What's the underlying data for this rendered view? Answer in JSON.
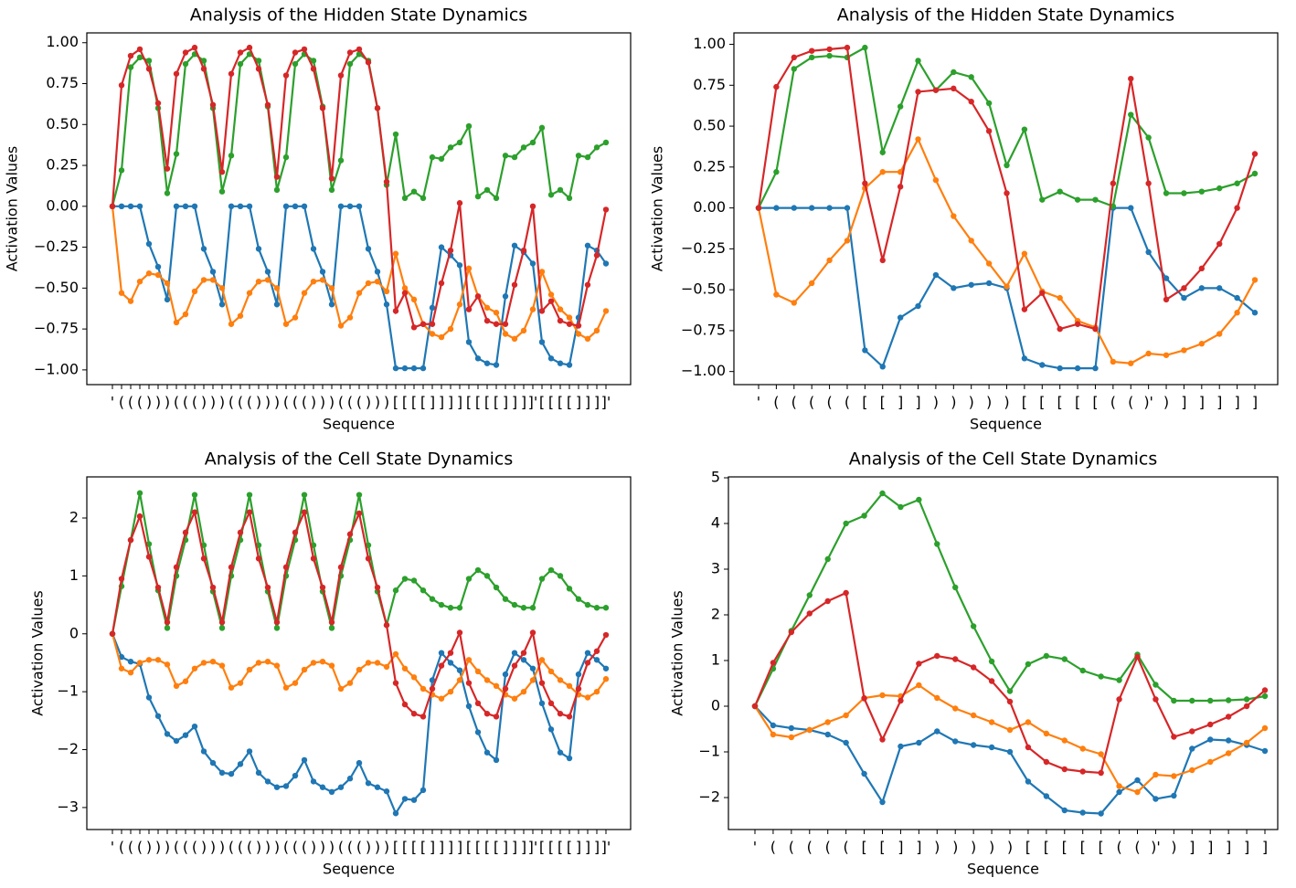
{
  "chart_data": [
    {
      "type": "line",
      "title": "Analysis of the Hidden State Dynamics",
      "x_label": "Sequence",
      "y_label": "Activation Values",
      "categories": [
        "'",
        "(",
        "(",
        "(",
        ")",
        ")",
        ")",
        "(",
        "(",
        "(",
        ")",
        ")",
        ")",
        "(",
        "(",
        "(",
        ")",
        ")",
        ")",
        "(",
        "(",
        "(",
        ")",
        ")",
        ")",
        "(",
        "(",
        "(",
        ")",
        ")",
        ")",
        "[",
        "[",
        "[",
        "[",
        "]",
        "]",
        "]",
        "]",
        "[",
        "[",
        "[",
        "[",
        "]",
        "]",
        "]",
        "]'",
        "[",
        "[",
        "[",
        "[",
        "]",
        "]",
        "]",
        "]'"
      ],
      "ylim": [
        -1.09,
        1.06
      ],
      "yticks": [
        {
          "value": 1,
          "label": "1.00"
        },
        {
          "value": 0.75,
          "label": "0.75"
        },
        {
          "value": 0.5,
          "label": "0.50"
        },
        {
          "value": 0.25,
          "label": "0.25"
        },
        {
          "value": 0,
          "label": "0.00"
        },
        {
          "value": -0.25,
          "label": "−0.25"
        },
        {
          "value": -0.5,
          "label": "−0.50"
        },
        {
          "value": -0.75,
          "label": "−0.75"
        },
        {
          "value": -1,
          "label": "−1.00"
        }
      ],
      "series": [
        {
          "color": "#1f77b4",
          "values": [
            0,
            0,
            0,
            0,
            -0.23,
            -0.37,
            -0.57,
            0,
            0,
            0,
            -0.26,
            -0.4,
            -0.6,
            0,
            0,
            0,
            -0.26,
            -0.4,
            -0.6,
            0,
            0,
            0,
            -0.26,
            -0.4,
            -0.6,
            0,
            0,
            0,
            -0.26,
            -0.4,
            -0.6,
            -0.99,
            -0.99,
            -0.99,
            -0.99,
            -0.62,
            -0.25,
            -0.3,
            -0.36,
            -0.83,
            -0.93,
            -0.96,
            -0.97,
            -0.55,
            -0.24,
            -0.28,
            -0.35,
            -0.83,
            -0.93,
            -0.96,
            -0.97,
            -0.68,
            -0.24,
            -0.27,
            -0.35
          ]
        },
        {
          "color": "#ff7f0e",
          "values": [
            0,
            -0.53,
            -0.58,
            -0.46,
            -0.41,
            -0.42,
            -0.47,
            -0.71,
            -0.66,
            -0.52,
            -0.45,
            -0.45,
            -0.5,
            -0.72,
            -0.67,
            -0.53,
            -0.46,
            -0.45,
            -0.5,
            -0.72,
            -0.68,
            -0.53,
            -0.46,
            -0.45,
            -0.5,
            -0.73,
            -0.68,
            -0.53,
            -0.47,
            -0.46,
            -0.52,
            -0.29,
            -0.5,
            -0.57,
            -0.72,
            -0.78,
            -0.8,
            -0.75,
            -0.6,
            -0.38,
            -0.55,
            -0.62,
            -0.65,
            -0.78,
            -0.81,
            -0.76,
            -0.63,
            -0.4,
            -0.54,
            -0.63,
            -0.68,
            -0.78,
            -0.81,
            -0.76,
            -0.64
          ]
        },
        {
          "color": "#2ca02c",
          "values": [
            0,
            0.22,
            0.85,
            0.91,
            0.89,
            0.6,
            0.08,
            0.32,
            0.87,
            0.93,
            0.89,
            0.6,
            0.09,
            0.31,
            0.87,
            0.93,
            0.89,
            0.61,
            0.1,
            0.3,
            0.87,
            0.93,
            0.89,
            0.61,
            0.1,
            0.28,
            0.87,
            0.93,
            0.89,
            0.6,
            0.13,
            0.44,
            0.05,
            0.09,
            0.05,
            0.3,
            0.29,
            0.36,
            0.39,
            0.49,
            0.06,
            0.1,
            0.05,
            0.31,
            0.3,
            0.36,
            0.39,
            0.48,
            0.07,
            0.1,
            0.05,
            0.31,
            0.3,
            0.36,
            0.39
          ]
        },
        {
          "color": "#d62728",
          "values": [
            0,
            0.74,
            0.92,
            0.96,
            0.84,
            0.63,
            0.23,
            0.81,
            0.94,
            0.97,
            0.84,
            0.62,
            0.21,
            0.81,
            0.94,
            0.97,
            0.84,
            0.62,
            0.18,
            0.8,
            0.94,
            0.96,
            0.84,
            0.6,
            0.17,
            0.8,
            0.94,
            0.96,
            0.88,
            0.6,
            0.15,
            -0.64,
            -0.53,
            -0.74,
            -0.72,
            -0.72,
            -0.47,
            -0.27,
            0.02,
            -0.63,
            -0.55,
            -0.7,
            -0.72,
            -0.72,
            -0.48,
            -0.27,
            0,
            -0.64,
            -0.58,
            -0.7,
            -0.72,
            -0.73,
            -0.48,
            -0.3,
            -0.02
          ]
        }
      ]
    },
    {
      "type": "line",
      "title": "Analysis of the Hidden State Dynamics",
      "x_label": "Sequence",
      "y_label": "Activation Values",
      "categories": [
        "'",
        "(",
        "(",
        "(",
        "(",
        "(",
        "[",
        "[",
        "]",
        "]",
        ")",
        ")",
        ")",
        ")",
        ")",
        "[",
        "[",
        "[",
        "[",
        "[",
        "(",
        "(",
        ")'",
        ")",
        "]",
        "]",
        "]",
        "]",
        "]"
      ],
      "ylim": [
        -1.08,
        1.07
      ],
      "yticks": [
        {
          "value": 1,
          "label": "1.00"
        },
        {
          "value": 0.75,
          "label": "0.75"
        },
        {
          "value": 0.5,
          "label": "0.50"
        },
        {
          "value": 0.25,
          "label": "0.25"
        },
        {
          "value": 0,
          "label": "0.00"
        },
        {
          "value": -0.25,
          "label": "−0.25"
        },
        {
          "value": -0.5,
          "label": "−0.50"
        },
        {
          "value": -0.75,
          "label": "−0.75"
        },
        {
          "value": -1,
          "label": "−1.00"
        }
      ],
      "series": [
        {
          "color": "#1f77b4",
          "values": [
            0,
            0,
            0,
            0,
            0,
            0,
            -0.87,
            -0.97,
            -0.67,
            -0.6,
            -0.41,
            -0.49,
            -0.47,
            -0.46,
            -0.49,
            -0.92,
            -0.96,
            -0.98,
            -0.98,
            -0.98,
            0,
            0,
            -0.27,
            -0.43,
            -0.55,
            -0.49,
            -0.49,
            -0.55,
            -0.64
          ]
        },
        {
          "color": "#ff7f0e",
          "values": [
            0,
            -0.53,
            -0.58,
            -0.46,
            -0.32,
            -0.2,
            0.12,
            0.22,
            0.22,
            0.42,
            0.17,
            -0.05,
            -0.2,
            -0.34,
            -0.48,
            -0.28,
            -0.51,
            -0.55,
            -0.69,
            -0.73,
            -0.94,
            -0.95,
            -0.89,
            -0.9,
            -0.87,
            -0.83,
            -0.77,
            -0.64,
            -0.44
          ]
        },
        {
          "color": "#2ca02c",
          "values": [
            0,
            0.22,
            0.85,
            0.92,
            0.93,
            0.92,
            0.98,
            0.34,
            0.62,
            0.9,
            0.72,
            0.83,
            0.8,
            0.64,
            0.26,
            0.48,
            0.05,
            0.1,
            0.05,
            0.05,
            0.01,
            0.57,
            0.43,
            0.09,
            0.09,
            0.1,
            0.12,
            0.15,
            0.21
          ]
        },
        {
          "color": "#d62728",
          "values": [
            0,
            0.74,
            0.92,
            0.96,
            0.97,
            0.98,
            0.15,
            -0.32,
            0.13,
            0.71,
            0.72,
            0.73,
            0.65,
            0.47,
            0.09,
            -0.62,
            -0.52,
            -0.74,
            -0.71,
            -0.74,
            0.15,
            0.79,
            0.15,
            -0.56,
            -0.49,
            -0.37,
            -0.22,
            0,
            0.33
          ]
        }
      ]
    },
    {
      "type": "line",
      "title": "Analysis of the Cell State Dynamics",
      "x_label": "Sequence",
      "y_label": "Activation Values",
      "categories": [
        "'",
        "(",
        "(",
        "(",
        ")",
        ")",
        ")",
        "(",
        "(",
        "(",
        ")",
        ")",
        ")",
        "(",
        "(",
        "(",
        ")",
        ")",
        ")",
        "(",
        "(",
        "(",
        ")",
        ")",
        ")",
        "(",
        "(",
        "(",
        ")",
        ")",
        ")",
        "[",
        "[",
        "[",
        "[",
        "]",
        "]",
        "]",
        "]",
        "[",
        "[",
        "[",
        "[",
        "]",
        "]",
        "]",
        "]'",
        "[",
        "[",
        "[",
        "[",
        "]",
        "]",
        "]",
        "]'"
      ],
      "ylim": [
        -3.38,
        2.71
      ],
      "yticks": [
        2,
        1,
        0,
        {
          "value": -1,
          "label": "−1"
        },
        {
          "value": -2,
          "label": "−2"
        },
        {
          "value": -3,
          "label": "−3"
        }
      ],
      "series": [
        {
          "color": "#1f77b4",
          "values": [
            0,
            -0.4,
            -0.48,
            -0.52,
            -1.1,
            -1.42,
            -1.73,
            -1.85,
            -1.75,
            -1.6,
            -2.03,
            -2.23,
            -2.4,
            -2.42,
            -2.25,
            -2.03,
            -2.4,
            -2.55,
            -2.65,
            -2.63,
            -2.45,
            -2.18,
            -2.55,
            -2.65,
            -2.73,
            -2.65,
            -2.5,
            -2.23,
            -2.58,
            -2.65,
            -2.72,
            -3.1,
            -2.85,
            -2.87,
            -2.7,
            -0.8,
            -0.33,
            -0.5,
            -0.63,
            -1.25,
            -1.7,
            -2.05,
            -2.18,
            -0.7,
            -0.33,
            -0.45,
            -0.6,
            -1.2,
            -1.65,
            -2.05,
            -2.15,
            -0.7,
            -0.33,
            -0.45,
            -0.6
          ]
        },
        {
          "color": "#ff7f0e",
          "values": [
            0,
            -0.6,
            -0.67,
            -0.5,
            -0.45,
            -0.45,
            -0.53,
            -0.9,
            -0.82,
            -0.6,
            -0.5,
            -0.48,
            -0.55,
            -0.93,
            -0.85,
            -0.62,
            -0.5,
            -0.48,
            -0.55,
            -0.93,
            -0.85,
            -0.62,
            -0.5,
            -0.48,
            -0.55,
            -0.95,
            -0.85,
            -0.62,
            -0.5,
            -0.5,
            -0.57,
            -0.35,
            -0.6,
            -0.75,
            -0.95,
            -1.05,
            -1.12,
            -1,
            -0.8,
            -0.45,
            -0.65,
            -0.8,
            -0.9,
            -1.05,
            -1.12,
            -1,
            -0.8,
            -0.45,
            -0.65,
            -0.8,
            -0.9,
            -1.05,
            -1.1,
            -1,
            -0.78
          ]
        },
        {
          "color": "#2ca02c",
          "values": [
            0,
            0.82,
            1.62,
            2.43,
            1.55,
            0.75,
            0.1,
            1,
            1.62,
            2.4,
            1.53,
            0.73,
            0.1,
            1,
            1.62,
            2.4,
            1.53,
            0.73,
            0.1,
            1,
            1.62,
            2.4,
            1.53,
            0.73,
            0.1,
            1,
            1.62,
            2.4,
            1.53,
            0.73,
            0.15,
            0.75,
            0.95,
            0.92,
            0.75,
            0.6,
            0.5,
            0.45,
            0.45,
            0.95,
            1.1,
            1,
            0.8,
            0.6,
            0.5,
            0.45,
            0.45,
            0.95,
            1.1,
            1,
            0.78,
            0.6,
            0.5,
            0.45,
            0.45
          ]
        },
        {
          "color": "#d62728",
          "values": [
            0,
            0.95,
            1.62,
            2.03,
            1.33,
            0.8,
            0.2,
            1.15,
            1.75,
            2.1,
            1.3,
            0.8,
            0.2,
            1.15,
            1.75,
            2.1,
            1.3,
            0.8,
            0.2,
            1.15,
            1.75,
            2.1,
            1.3,
            0.8,
            0.2,
            1.15,
            1.72,
            2.08,
            1.3,
            0.8,
            0.15,
            -0.85,
            -1.22,
            -1.38,
            -1.43,
            -0.95,
            -0.55,
            -0.33,
            0.02,
            -0.85,
            -1.2,
            -1.38,
            -1.43,
            -0.95,
            -0.55,
            -0.33,
            0.02,
            -0.85,
            -1.2,
            -1.38,
            -1.43,
            -0.95,
            -0.5,
            -0.3,
            -0.02
          ]
        }
      ]
    },
    {
      "type": "line",
      "title": "Analysis of the Cell State Dynamics",
      "x_label": "Sequence",
      "y_label": "Activation Values",
      "categories": [
        "'",
        "(",
        "(",
        "(",
        "(",
        "(",
        "[",
        "[",
        "]",
        "]",
        ")",
        ")",
        ")",
        ")",
        ")",
        "[",
        "[",
        "[",
        "[",
        "[",
        "(",
        "(",
        ")'",
        ")",
        "]",
        "]",
        "]",
        "]",
        "]"
      ],
      "ylim": [
        -2.7,
        5.02
      ],
      "yticks": [
        5,
        4,
        3,
        2,
        1,
        0,
        {
          "value": -1,
          "label": "−1"
        },
        {
          "value": -2,
          "label": "−2"
        }
      ],
      "series": [
        {
          "color": "#1f77b4",
          "values": [
            0,
            -0.42,
            -0.48,
            -0.52,
            -0.62,
            -0.8,
            -1.48,
            -2.1,
            -0.88,
            -0.8,
            -0.55,
            -0.77,
            -0.85,
            -0.9,
            -1,
            -1.65,
            -1.97,
            -2.28,
            -2.33,
            -2.35,
            -1.88,
            -1.62,
            -2.03,
            -1.96,
            -0.93,
            -0.73,
            -0.75,
            -0.85,
            -0.98
          ]
        },
        {
          "color": "#ff7f0e",
          "values": [
            0,
            -0.62,
            -0.68,
            -0.52,
            -0.35,
            -0.2,
            0.18,
            0.24,
            0.22,
            0.46,
            0.18,
            -0.05,
            -0.2,
            -0.35,
            -0.52,
            -0.35,
            -0.6,
            -0.75,
            -0.93,
            -1.05,
            -1.75,
            -1.88,
            -1.5,
            -1.53,
            -1.4,
            -1.22,
            -1.03,
            -0.8,
            -0.48
          ]
        },
        {
          "color": "#2ca02c",
          "values": [
            0,
            0.82,
            1.65,
            2.43,
            3.22,
            4,
            4.17,
            4.66,
            4.36,
            4.52,
            3.55,
            2.6,
            1.75,
            0.98,
            0.33,
            0.92,
            1.1,
            1.03,
            0.78,
            0.65,
            0.57,
            1.13,
            0.47,
            0.12,
            0.12,
            0.12,
            0.13,
            0.15,
            0.22
          ]
        },
        {
          "color": "#d62728",
          "values": [
            0,
            0.95,
            1.62,
            2.03,
            2.3,
            2.48,
            0.17,
            -0.73,
            0.12,
            0.93,
            1.1,
            1.03,
            0.85,
            0.55,
            0.1,
            -0.9,
            -1.22,
            -1.38,
            -1.43,
            -1.46,
            0.15,
            1.08,
            0.15,
            -0.67,
            -0.55,
            -0.4,
            -0.23,
            0,
            0.35
          ]
        }
      ]
    }
  ]
}
